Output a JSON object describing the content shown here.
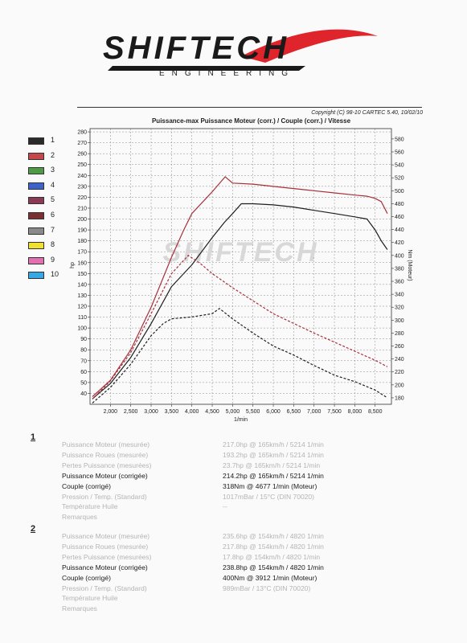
{
  "header": {
    "brand": "SHIFTECH",
    "subtitle": "ENGINEERING",
    "copyright": "Copyright (C) 98-10 CARTEC 5.40, 10/02/10",
    "watermark": "SHIFTECH"
  },
  "legend": [
    {
      "num": "1",
      "color": "#2a2a2a"
    },
    {
      "num": "2",
      "color": "#c4474a"
    },
    {
      "num": "3",
      "color": "#4f9a45"
    },
    {
      "num": "4",
      "color": "#3f62c9"
    },
    {
      "num": "5",
      "color": "#8a3a55"
    },
    {
      "num": "6",
      "color": "#7a3030"
    },
    {
      "num": "7",
      "color": "#8a8a8a"
    },
    {
      "num": "8",
      "color": "#f0e030"
    },
    {
      "num": "9",
      "color": "#e26fb0"
    },
    {
      "num": "10",
      "color": "#37a8e6"
    }
  ],
  "chart_data": {
    "type": "line",
    "title": "Puissance-max Puissance Moteur (corr.) / Couple (corr.) / Vitesse",
    "xlabel": "1/min",
    "ylabel": "hp",
    "y2label": "Nm (Moteur)",
    "xlim": [
      1500,
      8900
    ],
    "ylim": [
      30,
      283
    ],
    "y2lim": [
      170,
      596
    ],
    "xticks": [
      "2,000",
      "2,500",
      "3,000",
      "3,500",
      "4,000",
      "4,500",
      "5,000",
      "5,500",
      "6,000",
      "6,500",
      "7,000",
      "7,500",
      "8,000",
      "8,500"
    ],
    "yticks": [
      40,
      50,
      60,
      70,
      80,
      90,
      100,
      110,
      120,
      130,
      140,
      150,
      160,
      170,
      180,
      190,
      200,
      210,
      220,
      230,
      240,
      250,
      260,
      270,
      280
    ],
    "y2ticks": [
      180,
      200,
      220,
      240,
      260,
      280,
      300,
      320,
      340,
      360,
      380,
      400,
      420,
      440,
      460,
      480,
      500,
      520,
      540,
      560,
      580
    ],
    "grid": true,
    "series": [
      {
        "name": "1",
        "axis": "left",
        "color": "#1e1e1e",
        "dash": false,
        "x": [
          1560,
          2000,
          2500,
          3000,
          3500,
          4000,
          4500,
          4800,
          5000,
          5214,
          5500,
          6000,
          6500,
          7000,
          7500,
          8000,
          8300,
          8500,
          8650,
          8800
        ],
        "y": [
          35,
          49,
          73,
          104,
          138,
          158,
          183,
          197,
          205,
          214,
          214,
          213,
          211,
          208,
          205,
          202,
          200,
          190,
          180,
          172
        ]
      },
      {
        "name": "1",
        "axis": "right",
        "color": "#1e1e1e",
        "dash": true,
        "x": [
          1560,
          2000,
          2500,
          3000,
          3300,
          3500,
          4000,
          4500,
          4677,
          5000,
          5500,
          6000,
          6500,
          7000,
          7500,
          8000,
          8500,
          8800
        ],
        "y": [
          172,
          196,
          232,
          276,
          295,
          302,
          305,
          310,
          318,
          302,
          280,
          260,
          246,
          230,
          215,
          205,
          192,
          180
        ]
      },
      {
        "name": "2",
        "axis": "left",
        "color": "#a8303a",
        "dash": false,
        "x": [
          1560,
          2000,
          2500,
          3000,
          3500,
          3800,
          4000,
          4500,
          4820,
          5000,
          5500,
          6000,
          6500,
          7000,
          7500,
          8000,
          8300,
          8500,
          8650,
          8800
        ],
        "y": [
          37,
          52,
          80,
          119,
          165,
          190,
          205,
          225,
          238.8,
          233,
          232,
          230,
          228,
          226,
          224,
          222,
          221,
          219,
          216,
          205
        ]
      },
      {
        "name": "2",
        "axis": "right",
        "color": "#a8303a",
        "dash": true,
        "x": [
          1560,
          2000,
          2500,
          3000,
          3500,
          3912,
          4200,
          4500,
          5000,
          5500,
          6000,
          6500,
          7000,
          7500,
          8000,
          8500,
          8800
        ],
        "y": [
          178,
          206,
          250,
          310,
          372,
          400,
          388,
          372,
          350,
          330,
          310,
          295,
          280,
          266,
          252,
          238,
          228
        ]
      }
    ]
  },
  "runs": [
    {
      "num": "1",
      "rows": [
        {
          "label": "Puissance Moteur (mesurée)",
          "value": "217.0hp @ 165km/h / 5214 1/min",
          "style": "dim"
        },
        {
          "label": "Puissance Roues (mesurée)",
          "value": "193.2hp @ 165km/h / 5214 1/min",
          "style": "dim"
        },
        {
          "label": "Pertes Puissance (mesurées)",
          "value": "23.7hp @ 165km/h / 5214 1/min",
          "style": "dim"
        },
        {
          "label": "Puissance Moteur (corrigée)",
          "value": "214.2hp @ 165km/h / 5214 1/min",
          "style": "strong"
        },
        {
          "label": "Couple (corrigé)",
          "value": "318Nm @ 4677 1/min (Moteur)",
          "style": "strong"
        },
        {
          "label": "Pression / Temp. (Standard)",
          "value": "1017mBar / 15°C    (DIN 70020)",
          "style": "dim"
        },
        {
          "label": "Température Huile",
          "value": "--",
          "style": "dim"
        },
        {
          "label": "Remarques",
          "value": "",
          "style": "dim"
        }
      ]
    },
    {
      "num": "2",
      "rows": [
        {
          "label": "Puissance Moteur (mesurée)",
          "value": "235.6hp @ 154km/h / 4820 1/min",
          "style": "dim"
        },
        {
          "label": "Puissance Roues (mesurée)",
          "value": "217.8hp @ 154km/h / 4820 1/min",
          "style": "dim"
        },
        {
          "label": "Pertes Puissance (mesurées)",
          "value": "17.8hp @ 154km/h / 4820 1/min",
          "style": "dim"
        },
        {
          "label": "Puissance Moteur (corrigée)",
          "value": "238.8hp @ 154km/h / 4820 1/min",
          "style": "strong"
        },
        {
          "label": "Couple (corrigé)",
          "value": "400Nm @ 3912 1/min (Moteur)",
          "style": "strong"
        },
        {
          "label": "Pression / Temp. (Standard)",
          "value": "989mBar / 13°C    (DIN 70020)",
          "style": "dim"
        },
        {
          "label": "Température Huile",
          "value": "",
          "style": "dim"
        },
        {
          "label": "Remarques",
          "value": "",
          "style": "dim"
        }
      ]
    }
  ]
}
